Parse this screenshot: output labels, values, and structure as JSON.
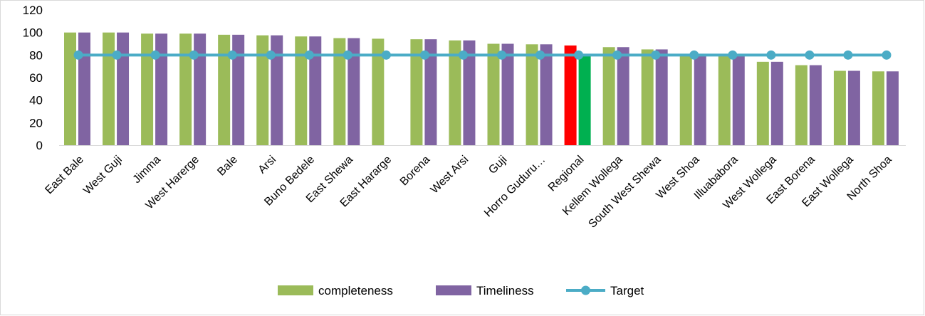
{
  "chart_data": {
    "type": "bar",
    "categories": [
      "East Bale",
      "West Guji",
      "Jimma",
      "West Harerge",
      "Bale",
      "Arsi",
      "Buno Bedele",
      "East Shewa",
      "East Hararge",
      "Borena",
      "West Arsi",
      "Guji",
      "Horro Guduru…",
      "Regional",
      "Kellem Wollega",
      "South West Shewa",
      "West Shoa",
      "Illuababora",
      "West Wollega",
      "East Borena",
      "East Wollega",
      "North Shoa"
    ],
    "series": [
      {
        "name": "completeness",
        "type": "bar",
        "color": "#9bbb59",
        "values": [
          100,
          100,
          99,
          99,
          98,
          97.5,
          96.5,
          95,
          94.5,
          94,
          93,
          90,
          89.5,
          88.5,
          87,
          85,
          80,
          79,
          74,
          71,
          66,
          65.5
        ]
      },
      {
        "name": "Timeliness",
        "type": "bar",
        "color": "#8064a2",
        "values": [
          100,
          100,
          99,
          99,
          98,
          97.5,
          96.5,
          95,
          null,
          94,
          93,
          90,
          89.5,
          80,
          87,
          85,
          80,
          79,
          74,
          71,
          66,
          65.5
        ]
      },
      {
        "name": "Target",
        "type": "line",
        "color": "#4bacc6",
        "values": [
          80,
          80,
          80,
          80,
          80,
          80,
          80,
          80,
          80,
          80,
          80,
          80,
          80,
          80,
          80,
          80,
          80,
          80,
          80,
          80,
          80,
          80
        ]
      }
    ],
    "highlights": [
      {
        "category": "Regional",
        "series": "completeness",
        "color": "#ff0000"
      },
      {
        "category": "Regional",
        "series": "Timeliness",
        "color": "#00b050"
      }
    ],
    "ylim": [
      0,
      120
    ],
    "yticks": [
      0,
      20,
      40,
      60,
      80,
      100,
      120
    ],
    "grid": false,
    "legend_position": "bottom",
    "title": "",
    "xlabel": "",
    "ylabel": ""
  }
}
